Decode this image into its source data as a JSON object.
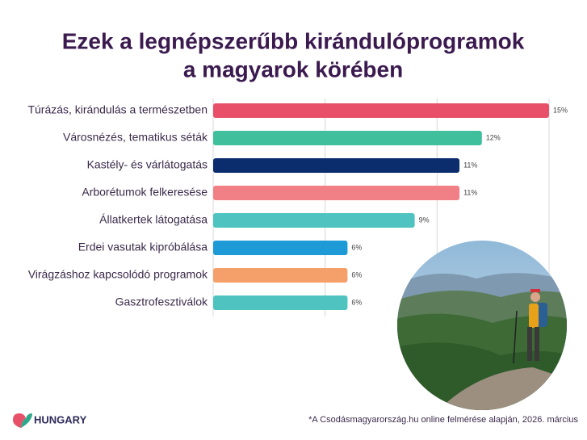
{
  "chart_data": {
    "type": "bar",
    "orientation": "horizontal",
    "title": [
      "Ezek a legnépszerűbb kirándulóprogramok",
      "a magyarok körében"
    ],
    "categories": [
      "Túrázás, kirándulás a természetben",
      "Városnézés, tematikus séták",
      "Kastély- és várlátogatás",
      "Arborétumok felkeresése",
      "Állatkertek látogatása",
      "Erdei vasutak kipróbálása",
      "Virágzáshoz kapcsolódó programok",
      "Gasztrofesztiválok"
    ],
    "values": [
      15,
      12,
      11,
      11,
      9,
      6,
      6,
      6
    ],
    "value_labels": [
      "15%",
      "12%",
      "11%",
      "11%",
      "9%",
      "6%",
      "6%",
      "6%"
    ],
    "colors": [
      "#e8506a",
      "#3fbf9b",
      "#0b2d6e",
      "#f07f86",
      "#4ec3c0",
      "#1e9ad6",
      "#f5a06a",
      "#4ec3c0"
    ],
    "xlim": [
      0,
      15
    ],
    "xticks": [
      0,
      5,
      10,
      15
    ],
    "grid": true,
    "logo": "HUNGARY",
    "footnote": "*A Csodásmagyarország.hu online felmérése alapján, 2026. március"
  }
}
